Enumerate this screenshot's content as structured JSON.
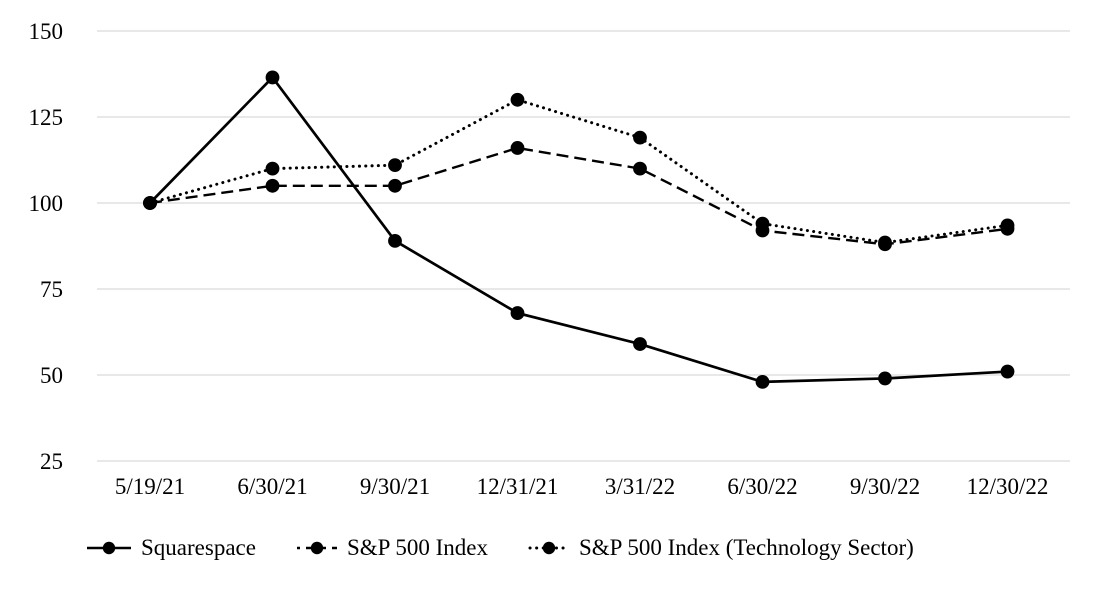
{
  "chart_data": {
    "type": "line",
    "title": "",
    "xlabel": "",
    "ylabel": "",
    "x_categories": [
      "5/19/21",
      "6/30/21",
      "9/30/21",
      "12/31/21",
      "3/31/22",
      "6/30/22",
      "9/30/22",
      "12/30/22"
    ],
    "series": [
      {
        "name": "Squarespace",
        "line_style": "solid",
        "marker": "circle",
        "values": [
          100,
          136.5,
          89,
          68,
          59,
          48,
          49,
          51
        ]
      },
      {
        "name": "S&P 500 Index",
        "line_style": "dashed",
        "marker": "circle",
        "values": [
          100,
          105,
          105,
          116,
          110,
          92,
          88,
          92.5
        ]
      },
      {
        "name": "S&P 500 Index (Technology Sector)",
        "line_style": "dotted",
        "marker": "circle",
        "values": [
          100,
          110,
          111,
          130,
          119,
          94,
          88.5,
          93.5
        ]
      }
    ],
    "ylim": [
      25,
      150
    ],
    "yticks": [
      150,
      125,
      100,
      75,
      50,
      25
    ],
    "grid": true,
    "legend_position": "bottom",
    "colors": {
      "series": "#000000",
      "gridline": "#d9d9d9",
      "text": "#000000",
      "background": "#ffffff"
    }
  }
}
